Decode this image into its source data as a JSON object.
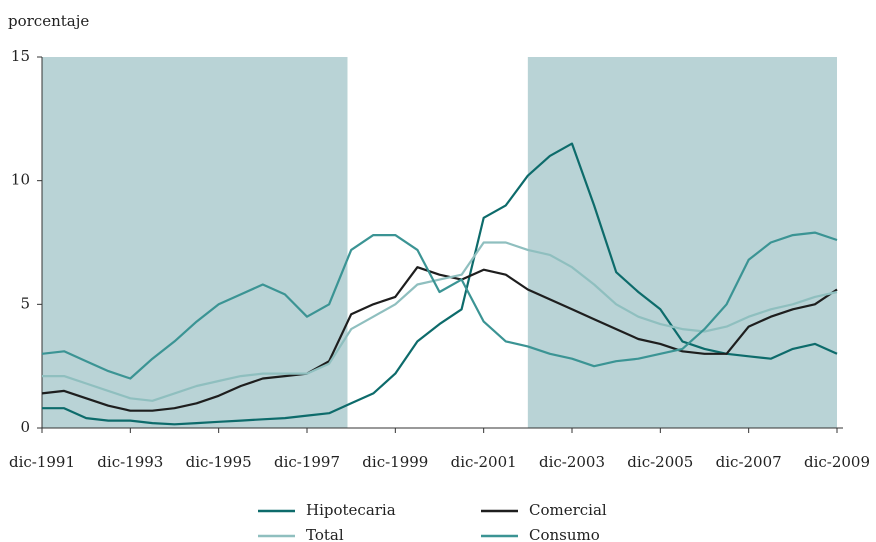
{
  "chart_data": {
    "type": "line",
    "y_label": "porcentaje",
    "x": [
      "1991-12",
      "1992-06",
      "1992-12",
      "1993-06",
      "1993-12",
      "1994-06",
      "1994-12",
      "1995-06",
      "1995-12",
      "1996-06",
      "1996-12",
      "1997-06",
      "1997-12",
      "1998-06",
      "1998-12",
      "1999-06",
      "1999-12",
      "2000-06",
      "2000-12",
      "2001-06",
      "2001-12",
      "2002-06",
      "2002-12",
      "2003-06",
      "2003-12",
      "2004-06",
      "2004-12",
      "2005-06",
      "2005-12",
      "2006-06",
      "2006-12",
      "2007-06",
      "2007-12",
      "2008-06",
      "2008-12",
      "2009-06",
      "2009-12"
    ],
    "series": [
      {
        "name": "Hipotecaria",
        "color": "#0d6b6b",
        "values": [
          0.8,
          0.8,
          0.4,
          0.3,
          0.3,
          0.2,
          0.15,
          0.2,
          0.25,
          0.3,
          0.35,
          0.4,
          0.5,
          0.6,
          1.0,
          1.4,
          2.2,
          3.5,
          4.2,
          4.8,
          8.5,
          9.0,
          10.2,
          11.0,
          11.5,
          9.0,
          6.3,
          5.5,
          4.8,
          3.5,
          3.2,
          3.0,
          2.9,
          2.8,
          3.2,
          3.4,
          3.0
        ]
      },
      {
        "name": "Comercial",
        "color": "#1e1e1e",
        "values": [
          1.4,
          1.5,
          1.2,
          0.9,
          0.7,
          0.7,
          0.8,
          1.0,
          1.3,
          1.7,
          2.0,
          2.1,
          2.2,
          2.7,
          4.6,
          5.0,
          5.3,
          6.5,
          6.2,
          6.0,
          6.4,
          6.2,
          5.6,
          5.2,
          4.8,
          4.4,
          4.0,
          3.6,
          3.4,
          3.1,
          3.0,
          3.0,
          4.1,
          4.5,
          4.8,
          5.0,
          5.6
        ]
      },
      {
        "name": "Total",
        "color": "#8fbfbf",
        "values": [
          2.1,
          2.1,
          1.8,
          1.5,
          1.2,
          1.1,
          1.4,
          1.7,
          1.9,
          2.1,
          2.2,
          2.2,
          2.2,
          2.6,
          4.0,
          4.5,
          5.0,
          5.8,
          6.0,
          6.2,
          7.5,
          7.5,
          7.2,
          7.0,
          6.5,
          5.8,
          5.0,
          4.5,
          4.2,
          4.0,
          3.9,
          4.1,
          4.5,
          4.8,
          5.0,
          5.3,
          5.5
        ]
      },
      {
        "name": "Consumo",
        "color": "#3b9494",
        "values": [
          3.0,
          3.1,
          2.7,
          2.3,
          2.0,
          2.8,
          3.5,
          4.3,
          5.0,
          5.4,
          5.8,
          5.4,
          4.5,
          5.0,
          7.2,
          7.8,
          7.8,
          7.2,
          5.5,
          6.0,
          4.3,
          3.5,
          3.3,
          3.0,
          2.8,
          2.5,
          2.7,
          2.8,
          3.0,
          3.2,
          4.0,
          5.0,
          6.8,
          7.5,
          7.8,
          7.9,
          7.6
        ]
      }
    ],
    "shaded_periods": [
      [
        "1991-12",
        "1998-11"
      ],
      [
        "2002-12",
        "2009-12"
      ]
    ],
    "shade_color": "#b9d3d6",
    "xlim": [
      "1991-12",
      "2009-12"
    ],
    "xticks": [
      {
        "value": "1991-12",
        "label": "dic-1991"
      },
      {
        "value": "1993-12",
        "label": "dic-1993"
      },
      {
        "value": "1995-12",
        "label": "dic-1995"
      },
      {
        "value": "1997-12",
        "label": "dic-1997"
      },
      {
        "value": "1999-12",
        "label": "dic-1999"
      },
      {
        "value": "2001-12",
        "label": "dic-2001"
      },
      {
        "value": "2003-12",
        "label": "dic-2003"
      },
      {
        "value": "2005-12",
        "label": "dic-2005"
      },
      {
        "value": "2007-12",
        "label": "dic-2007"
      },
      {
        "value": "2009-12",
        "label": "dic-2009"
      }
    ],
    "ylim": [
      0,
      15
    ],
    "yticks": [
      0,
      5,
      10,
      15
    ]
  }
}
